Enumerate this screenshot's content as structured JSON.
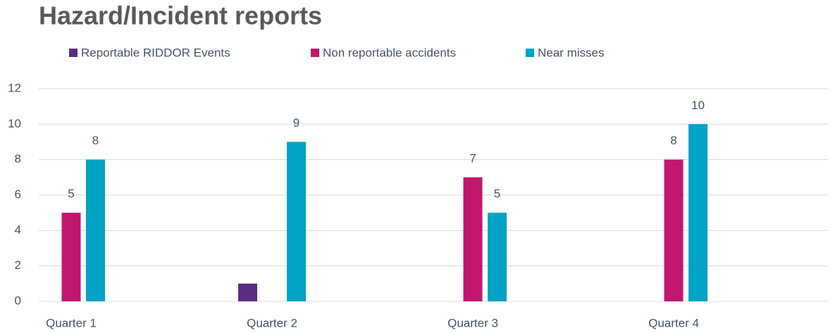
{
  "chart_data": {
    "type": "bar",
    "title": "Hazard/Incident reports",
    "categories": [
      "Quarter 1",
      "Quarter 2",
      "Quarter 3",
      "Quarter 4"
    ],
    "series": [
      {
        "name": "Reportable RIDDOR Events",
        "color": "#5b2c86",
        "values": [
          null,
          1,
          null,
          null
        ],
        "data_labels": false
      },
      {
        "name": "Non reportable accidents",
        "color": "#c0176f",
        "values": [
          5,
          null,
          7,
          8
        ],
        "data_labels": true
      },
      {
        "name": "Near misses",
        "color": "#00a3c4",
        "values": [
          8,
          9,
          5,
          10
        ],
        "data_labels": true
      }
    ],
    "ylim": [
      0,
      12
    ],
    "yticks": [
      0,
      2,
      4,
      6,
      8,
      10,
      12
    ],
    "grid": true,
    "legend": "top"
  }
}
